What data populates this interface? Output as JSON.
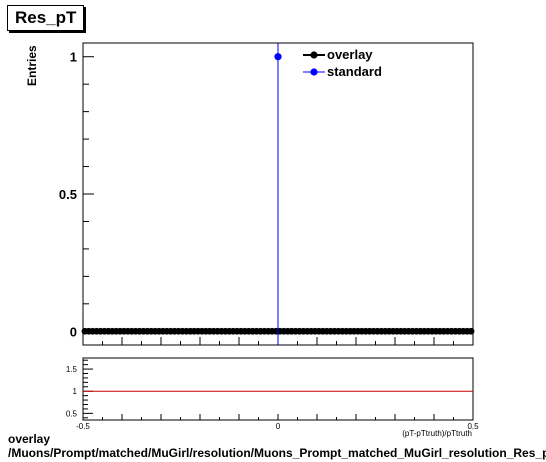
{
  "title": "Res_pT",
  "footer": {
    "line1": "overlay",
    "line2": "/Muons/Prompt/matched/MuGirl/resolution/Muons_Prompt_matched_MuGirl_resolution_Res_pT"
  },
  "chart_data": [
    {
      "type": "line",
      "ylabel": "Entries",
      "xlabel": "(pT-pTtruth)/pTtruth",
      "xlim": [
        -0.5,
        0.5
      ],
      "ylim": [
        -0.05,
        1.05
      ],
      "yticks": [
        0,
        0.5,
        1
      ],
      "ytick_labels": [
        "0",
        "0.5",
        "1"
      ],
      "legend_position": "top-right",
      "legend": [
        "overlay",
        "standard"
      ],
      "series": [
        {
          "name": "overlay",
          "color": "#000000",
          "marker": "circle",
          "x": [
            -0.495,
            -0.485,
            -0.475,
            -0.465,
            -0.455,
            -0.445,
            -0.435,
            -0.425,
            -0.415,
            -0.405,
            -0.395,
            -0.385,
            -0.375,
            -0.365,
            -0.355,
            -0.345,
            -0.335,
            -0.325,
            -0.315,
            -0.305,
            -0.295,
            -0.285,
            -0.275,
            -0.265,
            -0.255,
            -0.245,
            -0.235,
            -0.225,
            -0.215,
            -0.205,
            -0.195,
            -0.185,
            -0.175,
            -0.165,
            -0.155,
            -0.145,
            -0.135,
            -0.125,
            -0.115,
            -0.105,
            -0.095,
            -0.085,
            -0.075,
            -0.065,
            -0.055,
            -0.045,
            -0.035,
            -0.025,
            -0.015,
            -0.005,
            0.005,
            0.015,
            0.025,
            0.035,
            0.045,
            0.055,
            0.065,
            0.075,
            0.085,
            0.095,
            0.105,
            0.115,
            0.125,
            0.135,
            0.145,
            0.155,
            0.165,
            0.175,
            0.185,
            0.195,
            0.205,
            0.215,
            0.225,
            0.235,
            0.245,
            0.255,
            0.265,
            0.275,
            0.285,
            0.295,
            0.305,
            0.315,
            0.325,
            0.335,
            0.345,
            0.355,
            0.365,
            0.375,
            0.385,
            0.395,
            0.405,
            0.415,
            0.425,
            0.435,
            0.445,
            0.455,
            0.465,
            0.475,
            0.485,
            0.495
          ],
          "y": [
            0,
            0,
            0,
            0,
            0,
            0,
            0,
            0,
            0,
            0,
            0,
            0,
            0,
            0,
            0,
            0,
            0,
            0,
            0,
            0,
            0,
            0,
            0,
            0,
            0,
            0,
            0,
            0,
            0,
            0,
            0,
            0,
            0,
            0,
            0,
            0,
            0,
            0,
            0,
            0,
            0,
            0,
            0,
            0,
            0,
            0,
            0,
            0,
            0,
            0,
            0,
            0,
            0,
            0,
            0,
            0,
            0,
            0,
            0,
            0,
            0,
            0,
            0,
            0,
            0,
            0,
            0,
            0,
            0,
            0,
            0,
            0,
            0,
            0,
            0,
            0,
            0,
            0,
            0,
            0,
            0,
            0,
            0,
            0,
            0,
            0,
            0,
            0,
            0,
            0,
            0,
            0,
            0,
            0,
            0,
            0,
            0,
            0,
            0,
            0
          ]
        },
        {
          "name": "standard",
          "color": "#0000ff",
          "marker": "circle",
          "x": [
            0.0
          ],
          "y": [
            1
          ]
        }
      ]
    },
    {
      "type": "line",
      "xlim": [
        -0.5,
        0.5
      ],
      "ylim": [
        0.35,
        1.75
      ],
      "yticks": [
        0.5,
        1,
        1.5
      ],
      "ytick_labels": [
        "0.5",
        "1",
        "1.5"
      ],
      "xticks": [
        -0.5,
        0,
        0.5
      ],
      "xtick_labels": [
        "-0.5",
        "0",
        "0.5"
      ],
      "series": [
        {
          "color": "#cc0000",
          "x": [
            -0.5,
            0.5
          ],
          "y": [
            1,
            1
          ]
        }
      ]
    }
  ]
}
